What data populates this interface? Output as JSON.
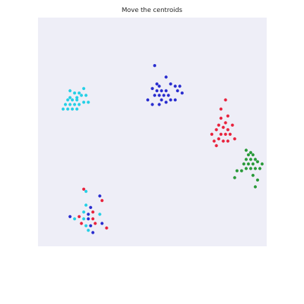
{
  "title": "Move the centroids",
  "colors": {
    "background": "#eeeef7",
    "cyan": "#26d0e6",
    "blue": "#2a2ecf",
    "red": "#e8243e",
    "green": "#2a9a3a"
  },
  "clusters": [
    {
      "name": "cyan-cluster",
      "color_key": "cyan",
      "points": [
        [
          -0.84,
          0.67
        ],
        [
          -0.83,
          0.65
        ],
        [
          -0.86,
          0.65
        ],
        [
          -0.87,
          0.64
        ],
        [
          -0.85,
          0.64
        ],
        [
          -0.83,
          0.64
        ],
        [
          -0.88,
          0.62
        ],
        [
          -0.86,
          0.62
        ],
        [
          -0.84,
          0.62
        ],
        [
          -0.82,
          0.62
        ],
        [
          -0.8,
          0.63
        ],
        [
          -0.78,
          0.63
        ],
        [
          -0.87,
          0.6
        ],
        [
          -0.85,
          0.6
        ],
        [
          -0.83,
          0.6
        ],
        [
          -0.86,
          0.68
        ],
        [
          -0.89,
          0.6
        ],
        [
          -0.8,
          0.69
        ],
        [
          -0.81,
          0.66
        ],
        [
          -0.79,
          0.66
        ],
        [
          -0.82,
          0.67
        ]
      ]
    },
    {
      "name": "blue-cluster",
      "color_key": "blue",
      "points": [
        [
          -0.48,
          0.71
        ],
        [
          -0.47,
          0.7
        ],
        [
          -0.5,
          0.69
        ],
        [
          -0.48,
          0.68
        ],
        [
          -0.46,
          0.68
        ],
        [
          -0.44,
          0.68
        ],
        [
          -0.49,
          0.66
        ],
        [
          -0.47,
          0.66
        ],
        [
          -0.45,
          0.66
        ],
        [
          -0.43,
          0.66
        ],
        [
          -0.46,
          0.64
        ],
        [
          -0.44,
          0.63
        ],
        [
          -0.47,
          0.62
        ],
        [
          -0.42,
          0.64
        ],
        [
          -0.4,
          0.64
        ],
        [
          -0.39,
          0.68
        ],
        [
          -0.37,
          0.67
        ],
        [
          -0.4,
          0.7
        ],
        [
          -0.38,
          0.7
        ],
        [
          -0.52,
          0.64
        ],
        [
          -0.49,
          0.79
        ],
        [
          -0.44,
          0.74
        ],
        [
          -0.42,
          0.71
        ],
        [
          -0.5,
          0.62
        ]
      ]
    },
    {
      "name": "dark-red-cluster",
      "color_key": "red",
      "points": [
        [
          -0.2,
          0.56
        ],
        [
          -0.18,
          0.54
        ],
        [
          -0.17,
          0.57
        ],
        [
          -0.21,
          0.53
        ],
        [
          -0.19,
          0.52
        ],
        [
          -0.17,
          0.51
        ],
        [
          -0.22,
          0.51
        ],
        [
          -0.2,
          0.49
        ],
        [
          -0.18,
          0.49
        ],
        [
          -0.16,
          0.49
        ],
        [
          -0.21,
          0.47
        ],
        [
          -0.19,
          0.46
        ],
        [
          -0.17,
          0.46
        ],
        [
          -0.23,
          0.46
        ],
        [
          -0.24,
          0.49
        ],
        [
          -0.2,
          0.6
        ],
        [
          -0.18,
          0.64
        ],
        [
          -0.15,
          0.53
        ],
        [
          -0.14,
          0.47
        ],
        [
          -0.22,
          0.44
        ]
      ]
    },
    {
      "name": "green-cluster",
      "color_key": "green",
      "points": [
        [
          -0.07,
          0.41
        ],
        [
          -0.08,
          0.4
        ],
        [
          -0.06,
          0.4
        ],
        [
          -0.09,
          0.38
        ],
        [
          -0.07,
          0.38
        ],
        [
          -0.05,
          0.38
        ],
        [
          -0.1,
          0.36
        ],
        [
          -0.08,
          0.36
        ],
        [
          -0.06,
          0.36
        ],
        [
          -0.04,
          0.37
        ],
        [
          -0.09,
          0.34
        ],
        [
          -0.07,
          0.34
        ],
        [
          -0.05,
          0.34
        ],
        [
          -0.11,
          0.33
        ],
        [
          -0.03,
          0.34
        ],
        [
          -0.02,
          0.36
        ],
        [
          -0.06,
          0.31
        ],
        [
          -0.13,
          0.33
        ],
        [
          -0.04,
          0.29
        ],
        [
          -0.05,
          0.26
        ],
        [
          -0.14,
          0.3
        ],
        [
          -0.09,
          0.42
        ]
      ]
    },
    {
      "name": "lower-left-cluster",
      "color_key": "blue",
      "points": [
        [
          -0.79,
          0.18
        ],
        [
          -0.77,
          0.17
        ],
        [
          -0.76,
          0.15
        ],
        [
          -0.8,
          0.15
        ],
        [
          -0.78,
          0.14
        ],
        [
          -0.82,
          0.13
        ],
        [
          -0.8,
          0.12
        ],
        [
          -0.78,
          0.12
        ],
        [
          -0.76,
          0.12
        ],
        [
          -0.84,
          0.12
        ],
        [
          -0.86,
          0.13
        ],
        [
          -0.81,
          0.1
        ],
        [
          -0.79,
          0.09
        ],
        [
          -0.77,
          0.09
        ],
        [
          -0.75,
          0.1
        ],
        [
          -0.73,
          0.14
        ],
        [
          -0.72,
          0.1
        ],
        [
          -0.7,
          0.08
        ],
        [
          -0.78,
          0.07
        ],
        [
          -0.76,
          0.06
        ],
        [
          -0.8,
          0.25
        ],
        [
          -0.79,
          0.24
        ],
        [
          -0.73,
          0.22
        ],
        [
          -0.72,
          0.2
        ]
      ]
    }
  ],
  "cluster_color_overrides": {
    "lower-left-cluster": [
      "cyan",
      "blue",
      "red"
    ]
  }
}
